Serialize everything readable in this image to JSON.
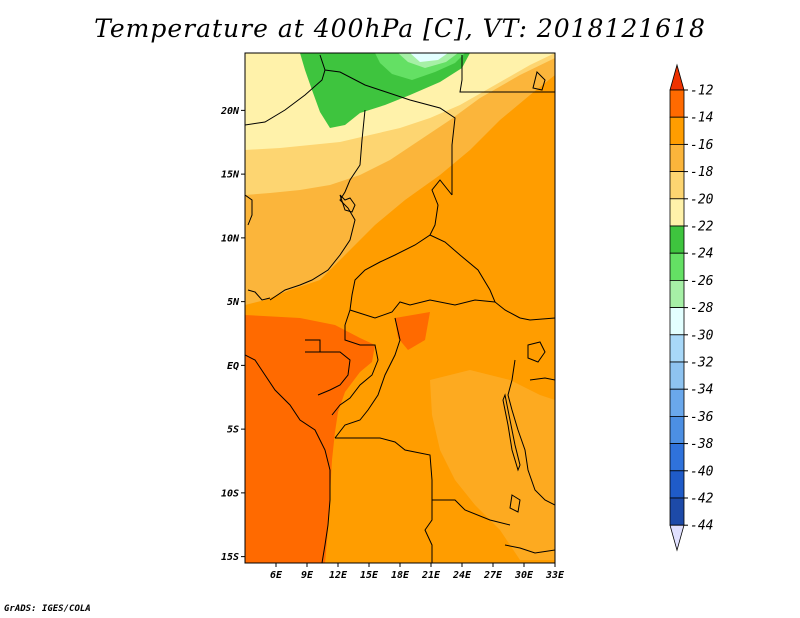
{
  "title": "Temperature at 400hPa [C], VT: 2018121618",
  "credit": "GrADS: IGES/COLA",
  "map": {
    "lon_range": [
      3,
      33
    ],
    "lat_range": [
      -15.5,
      24.5
    ],
    "lon_ticks": [
      {
        "value": 6,
        "label": "6E"
      },
      {
        "value": 9,
        "label": "9E"
      },
      {
        "value": 12,
        "label": "12E"
      },
      {
        "value": 15,
        "label": "15E"
      },
      {
        "value": 18,
        "label": "18E"
      },
      {
        "value": 21,
        "label": "21E"
      },
      {
        "value": 24,
        "label": "24E"
      },
      {
        "value": 27,
        "label": "27E"
      },
      {
        "value": 30,
        "label": "30E"
      },
      {
        "value": 33,
        "label": "33E"
      }
    ],
    "lat_ticks": [
      {
        "value": 20,
        "label": "20N"
      },
      {
        "value": 15,
        "label": "15N"
      },
      {
        "value": 10,
        "label": "10N"
      },
      {
        "value": 5,
        "label": "5N"
      },
      {
        "value": 0,
        "label": "EQ"
      },
      {
        "value": -5,
        "label": "5S"
      },
      {
        "value": -10,
        "label": "10S"
      },
      {
        "value": -15,
        "label": "15S"
      }
    ]
  },
  "colorbar": {
    "levels": [
      "-12",
      "-14",
      "-16",
      "-18",
      "-20",
      "-22",
      "-24",
      "-26",
      "-28",
      "-30",
      "-32",
      "-34",
      "-36",
      "-38",
      "-40",
      "-42",
      "-44"
    ],
    "colors": [
      "#ff6a00",
      "#ff9d00",
      "#fbb53b",
      "#fdd571",
      "#fff2aa",
      "#3ec43e",
      "#64e064",
      "#a6f0a6",
      "#e3ffff",
      "#a8d8f8",
      "#8ec3f0",
      "#6aa8ec",
      "#4c8fe3",
      "#2f72db",
      "#1f5bc8",
      "#1d4aa8"
    ],
    "top_arrow_color": "#ee3200",
    "bottom_arrow_color": "#e0e0ff"
  }
}
